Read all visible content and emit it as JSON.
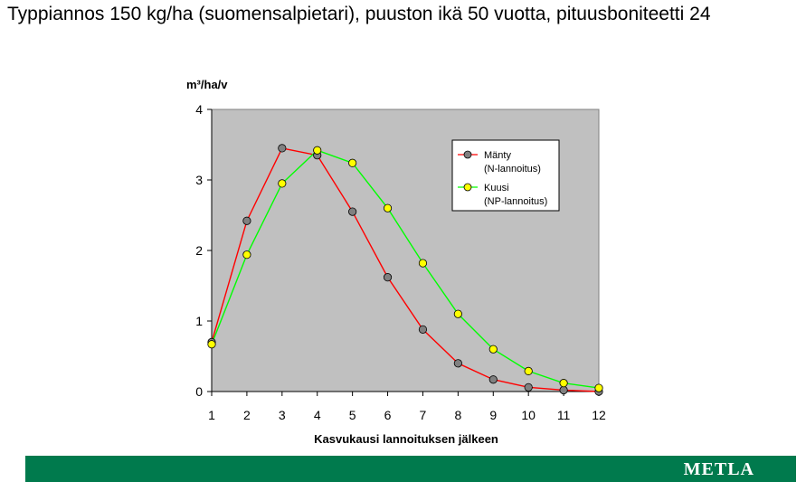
{
  "title": "Typpiannos 150 kg/ha (suomensalpietari), puuston ikä 50 vuotta, pituusboniteetti 24",
  "footer": {
    "logo": "METLA"
  },
  "colors": {
    "plot_background": "#c0c0c0",
    "footer_bar": "#007a4d",
    "series_1_line": "#ff0000",
    "series_1_marker": "#808080",
    "series_2_line": "#00ff00",
    "series_2_marker": "#ffff00"
  },
  "chart_data": {
    "type": "line",
    "ylabel": "m³/ha/v",
    "xlabel": "Kasvukausi lannoituksen jälkeen",
    "x": [
      1,
      2,
      3,
      4,
      5,
      6,
      7,
      8,
      9,
      10,
      11,
      12
    ],
    "ylim": [
      0,
      4
    ],
    "yticks": [
      0,
      1,
      2,
      3,
      4
    ],
    "grid": false,
    "legend_position": "top-right",
    "series": [
      {
        "name": "Mänty",
        "name_line2": "(N-lannoitus)",
        "values": [
          0.7,
          2.42,
          3.45,
          3.35,
          2.55,
          1.62,
          0.88,
          0.4,
          0.17,
          0.06,
          0.02,
          0.0
        ]
      },
      {
        "name": "Kuusi",
        "name_line2": "(NP-lannoitus)",
        "values": [
          0.67,
          1.94,
          2.95,
          3.42,
          3.24,
          2.6,
          1.82,
          1.1,
          0.6,
          0.29,
          0.12,
          0.05
        ]
      }
    ]
  }
}
